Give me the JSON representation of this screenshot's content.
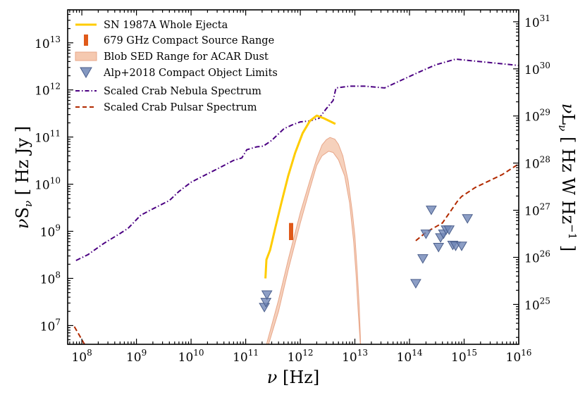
{
  "chart_data": {
    "type": "line",
    "x_scale": "log",
    "y_scale": "log",
    "x_label": "ν [Hz]",
    "y_label_left": "νS_ν [ Hz Jy ]",
    "y_label_right": "νL_ν [ Hz W Hz^−1 ]",
    "xlim": [
      55000000.0,
      1e+16
    ],
    "ylim": [
      4000000.0,
      50000000000000.0
    ],
    "x_ticks": [
      {
        "v": 100000000.0,
        "base": "10",
        "exp": "8"
      },
      {
        "v": 1000000000.0,
        "base": "10",
        "exp": "9"
      },
      {
        "v": 10000000000.0,
        "base": "10",
        "exp": "10"
      },
      {
        "v": 100000000000.0,
        "base": "10",
        "exp": "11"
      },
      {
        "v": 1000000000000.0,
        "base": "10",
        "exp": "12"
      },
      {
        "v": 10000000000000.0,
        "base": "10",
        "exp": "13"
      },
      {
        "v": 100000000000000.0,
        "base": "10",
        "exp": "14"
      },
      {
        "v": 1000000000000000.0,
        "base": "10",
        "exp": "15"
      },
      {
        "v": 1e+16,
        "base": "10",
        "exp": "16"
      }
    ],
    "y_ticks_left": [
      {
        "v": 10000000.0,
        "base": "10",
        "exp": "7"
      },
      {
        "v": 100000000.0,
        "base": "10",
        "exp": "8"
      },
      {
        "v": 1000000000.0,
        "base": "10",
        "exp": "9"
      },
      {
        "v": 10000000000.0,
        "base": "10",
        "exp": "10"
      },
      {
        "v": 100000000000.0,
        "base": "10",
        "exp": "11"
      },
      {
        "v": 1000000000000.0,
        "base": "10",
        "exp": "12"
      },
      {
        "v": 10000000000000.0,
        "base": "10",
        "exp": "13"
      }
    ],
    "y_ticks_right": [
      {
        "v": 28000000.0,
        "base": "10",
        "exp": "25"
      },
      {
        "v": 280000000.0,
        "base": "10",
        "exp": "26"
      },
      {
        "v": 2800000000.0,
        "base": "10",
        "exp": "27"
      },
      {
        "v": 28000000000.0,
        "base": "10",
        "exp": "28"
      },
      {
        "v": 280000000000.0,
        "base": "10",
        "exp": "29"
      },
      {
        "v": 2800000000000.0,
        "base": "10",
        "exp": "30"
      },
      {
        "v": 28000000000000.0,
        "base": "10",
        "exp": "31"
      }
    ],
    "legend": {
      "position": "top-left",
      "entries": [
        {
          "label": "SN 1987A Whole Ejecta",
          "style": "line",
          "color": "#ffcc00"
        },
        {
          "label": "679 GHz Compact Source Range",
          "style": "bar",
          "color": "#e05a1a"
        },
        {
          "label": "Blob SED Range for ACAR Dust",
          "style": "band",
          "color": "#f5c9b0"
        },
        {
          "label": "Alp+2018 Compact Object Limits",
          "style": "triangle",
          "color": "#6f86b6"
        },
        {
          "label": "Scaled Crab Nebula Spectrum",
          "style": "dashdot",
          "color": "#4b0082"
        },
        {
          "label": "Scaled Crab Pulsar Spectrum",
          "style": "dashed",
          "color": "#b22a00"
        }
      ]
    },
    "series": [
      {
        "name": "SN 1987A Whole Ejecta",
        "color": "#ffcc00",
        "points": [
          [
            230000000000.0,
            100000000.0
          ],
          [
            240000000000.0,
            250000000.0
          ],
          [
            280000000000.0,
            400000000.0
          ],
          [
            350000000000.0,
            1200000000.0
          ],
          [
            450000000000.0,
            4000000000.0
          ],
          [
            600000000000.0,
            15000000000.0
          ],
          [
            800000000000.0,
            45000000000.0
          ],
          [
            1100000000000.0,
            120000000000.0
          ],
          [
            1500000000000.0,
            220000000000.0
          ],
          [
            2000000000000.0,
            285000000000.0
          ],
          [
            2700000000000.0,
            250000000000.0
          ],
          [
            4400000000000.0,
            190000000000.0
          ]
        ]
      },
      {
        "name": "Scaled Crab Nebula Spectrum",
        "color": "#4b0082",
        "points": [
          [
            78000000.0,
            240000000.0
          ],
          [
            130000000.0,
            320000000.0
          ],
          [
            250000000.0,
            550000000.0
          ],
          [
            500000000.0,
            900000000.0
          ],
          [
            700000000.0,
            1150000000.0
          ],
          [
            1200000000.0,
            2200000000.0
          ],
          [
            2000000000.0,
            3000000000.0
          ],
          [
            4000000000.0,
            4500000000.0
          ],
          [
            6000000000.0,
            7000000000.0
          ],
          [
            10000000000.0,
            11000000000.0
          ],
          [
            15000000000.0,
            14000000000.0
          ],
          [
            30000000000.0,
            21000000000.0
          ],
          [
            60000000000.0,
            32000000000.0
          ],
          [
            85000000000.0,
            36000000000.0
          ],
          [
            105000000000.0,
            54000000000.0
          ],
          [
            160000000000.0,
            62000000000.0
          ],
          [
            210000000000.0,
            64000000000.0
          ],
          [
            300000000000.0,
            85000000000.0
          ],
          [
            500000000000.0,
            150000000000.0
          ],
          [
            700000000000.0,
            180000000000.0
          ],
          [
            1000000000000.0,
            210000000000.0
          ],
          [
            1500000000000.0,
            220000000000.0
          ],
          [
            2200000000000.0,
            250000000000.0
          ],
          [
            3000000000000.0,
            400000000000.0
          ],
          [
            4000000000000.0,
            600000000000.0
          ],
          [
            4500000000000.0,
            1100000000000.0
          ],
          [
            8000000000000.0,
            1200000000000.0
          ],
          [
            15000000000000.0,
            1200000000000.0
          ],
          [
            35000000000000.0,
            1100000000000.0
          ],
          [
            70000000000000.0,
            1600000000000.0
          ],
          [
            150000000000000.0,
            2400000000000.0
          ],
          [
            300000000000000.0,
            3400000000000.0
          ],
          [
            700000000000000.0,
            4500000000000.0
          ],
          [
            1e+16,
            3300000000000.0
          ]
        ]
      },
      {
        "name": "Scaled Crab Pulsar Spectrum",
        "color": "#b22a00",
        "points_low": [
          [
            73000000.0,
            9500000.0
          ],
          [
            115000000.0,
            3800000.0
          ]
        ],
        "points": [
          [
            130000000000000.0,
            630000000.0
          ],
          [
            200000000000000.0,
            950000000.0
          ],
          [
            400000000000000.0,
            1500000000.0
          ],
          [
            750000000000000.0,
            4300000000.0
          ],
          [
            900000000000000.0,
            5500000000.0
          ],
          [
            1600000000000000.0,
            8500000000.0
          ],
          [
            5000000000000000.0,
            16000000000.0
          ],
          [
            1e+16,
            27000000000.0
          ]
        ]
      },
      {
        "name": "679 GHz Compact Source Range",
        "color": "#e05a1a",
        "x": 679000000000.0,
        "range": [
          650000000.0,
          1500000000.0
        ]
      },
      {
        "name": "Blob SED Range for ACAR Dust",
        "color": "#f5c9b0",
        "outline": "#e8a78a",
        "upper": [
          [
            230000000000.0,
            3300000.0
          ],
          [
            400000000000.0,
            35000000.0
          ],
          [
            600000000000.0,
            250000000.0
          ],
          [
            1000000000000.0,
            2500000000.0
          ],
          [
            1500000000000.0,
            12000000000.0
          ],
          [
            2000000000000.0,
            35000000000.0
          ],
          [
            2500000000000.0,
            68000000000.0
          ],
          [
            3000000000000.0,
            88000000000.0
          ],
          [
            3500000000000.0,
            98000000000.0
          ],
          [
            4300000000000.0,
            90000000000.0
          ],
          [
            5000000000000.0,
            70000000000.0
          ],
          [
            6000000000000.0,
            40000000000.0
          ],
          [
            7500000000000.0,
            12000000000.0
          ],
          [
            9000000000000.0,
            2500000000.0
          ],
          [
            10000000000000.0,
            800000000.0
          ],
          [
            11000000000000.0,
            150000000.0
          ],
          [
            12000000000000.0,
            25000000.0
          ],
          [
            12800000000000.0,
            3300000.0
          ]
        ],
        "lower": [
          [
            12700000000000.0,
            3300000.0
          ],
          [
            11500000000000.0,
            20000000.0
          ],
          [
            10500000000000.0,
            120000000.0
          ],
          [
            9500000000000.0,
            600000000.0
          ],
          [
            8000000000000.0,
            4000000000.0
          ],
          [
            6500000000000.0,
            15000000000.0
          ],
          [
            5000000000000.0,
            33000000000.0
          ],
          [
            4000000000000.0,
            47000000000.0
          ],
          [
            3300000000000.0,
            50000000000.0
          ],
          [
            2500000000000.0,
            40000000000.0
          ],
          [
            2000000000000.0,
            25000000000.0
          ],
          [
            1500000000000.0,
            8000000000.0
          ],
          [
            1000000000000.0,
            1500000000.0
          ],
          [
            600000000000.0,
            150000000.0
          ],
          [
            400000000000.0,
            20000000.0
          ],
          [
            250000000000.0,
            3300000.0
          ]
        ]
      },
      {
        "name": "Alp+2018 Compact Object Limits",
        "color": "#6f86b6",
        "markers": [
          [
            220000000000.0,
            25000000.0
          ],
          [
            235000000000.0,
            32000000.0
          ],
          [
            245000000000.0,
            46000000.0
          ],
          [
            130000000000000.0,
            80000000.0
          ],
          [
            175000000000000.0,
            270000000.0
          ],
          [
            200000000000000.0,
            900000000.0
          ],
          [
            250000000000000.0,
            2900000000.0
          ],
          [
            340000000000000.0,
            470000000.0
          ],
          [
            370000000000000.0,
            750000000.0
          ],
          [
            420000000000000.0,
            900000000.0
          ],
          [
            470000000000000.0,
            1100000000.0
          ],
          [
            530000000000000.0,
            1100000000.0
          ],
          [
            620000000000000.0,
            520000000.0
          ],
          [
            700000000000000.0,
            500000000.0
          ],
          [
            900000000000000.0,
            500000000.0
          ],
          [
            1150000000000000.0,
            1900000000.0
          ]
        ]
      }
    ]
  }
}
